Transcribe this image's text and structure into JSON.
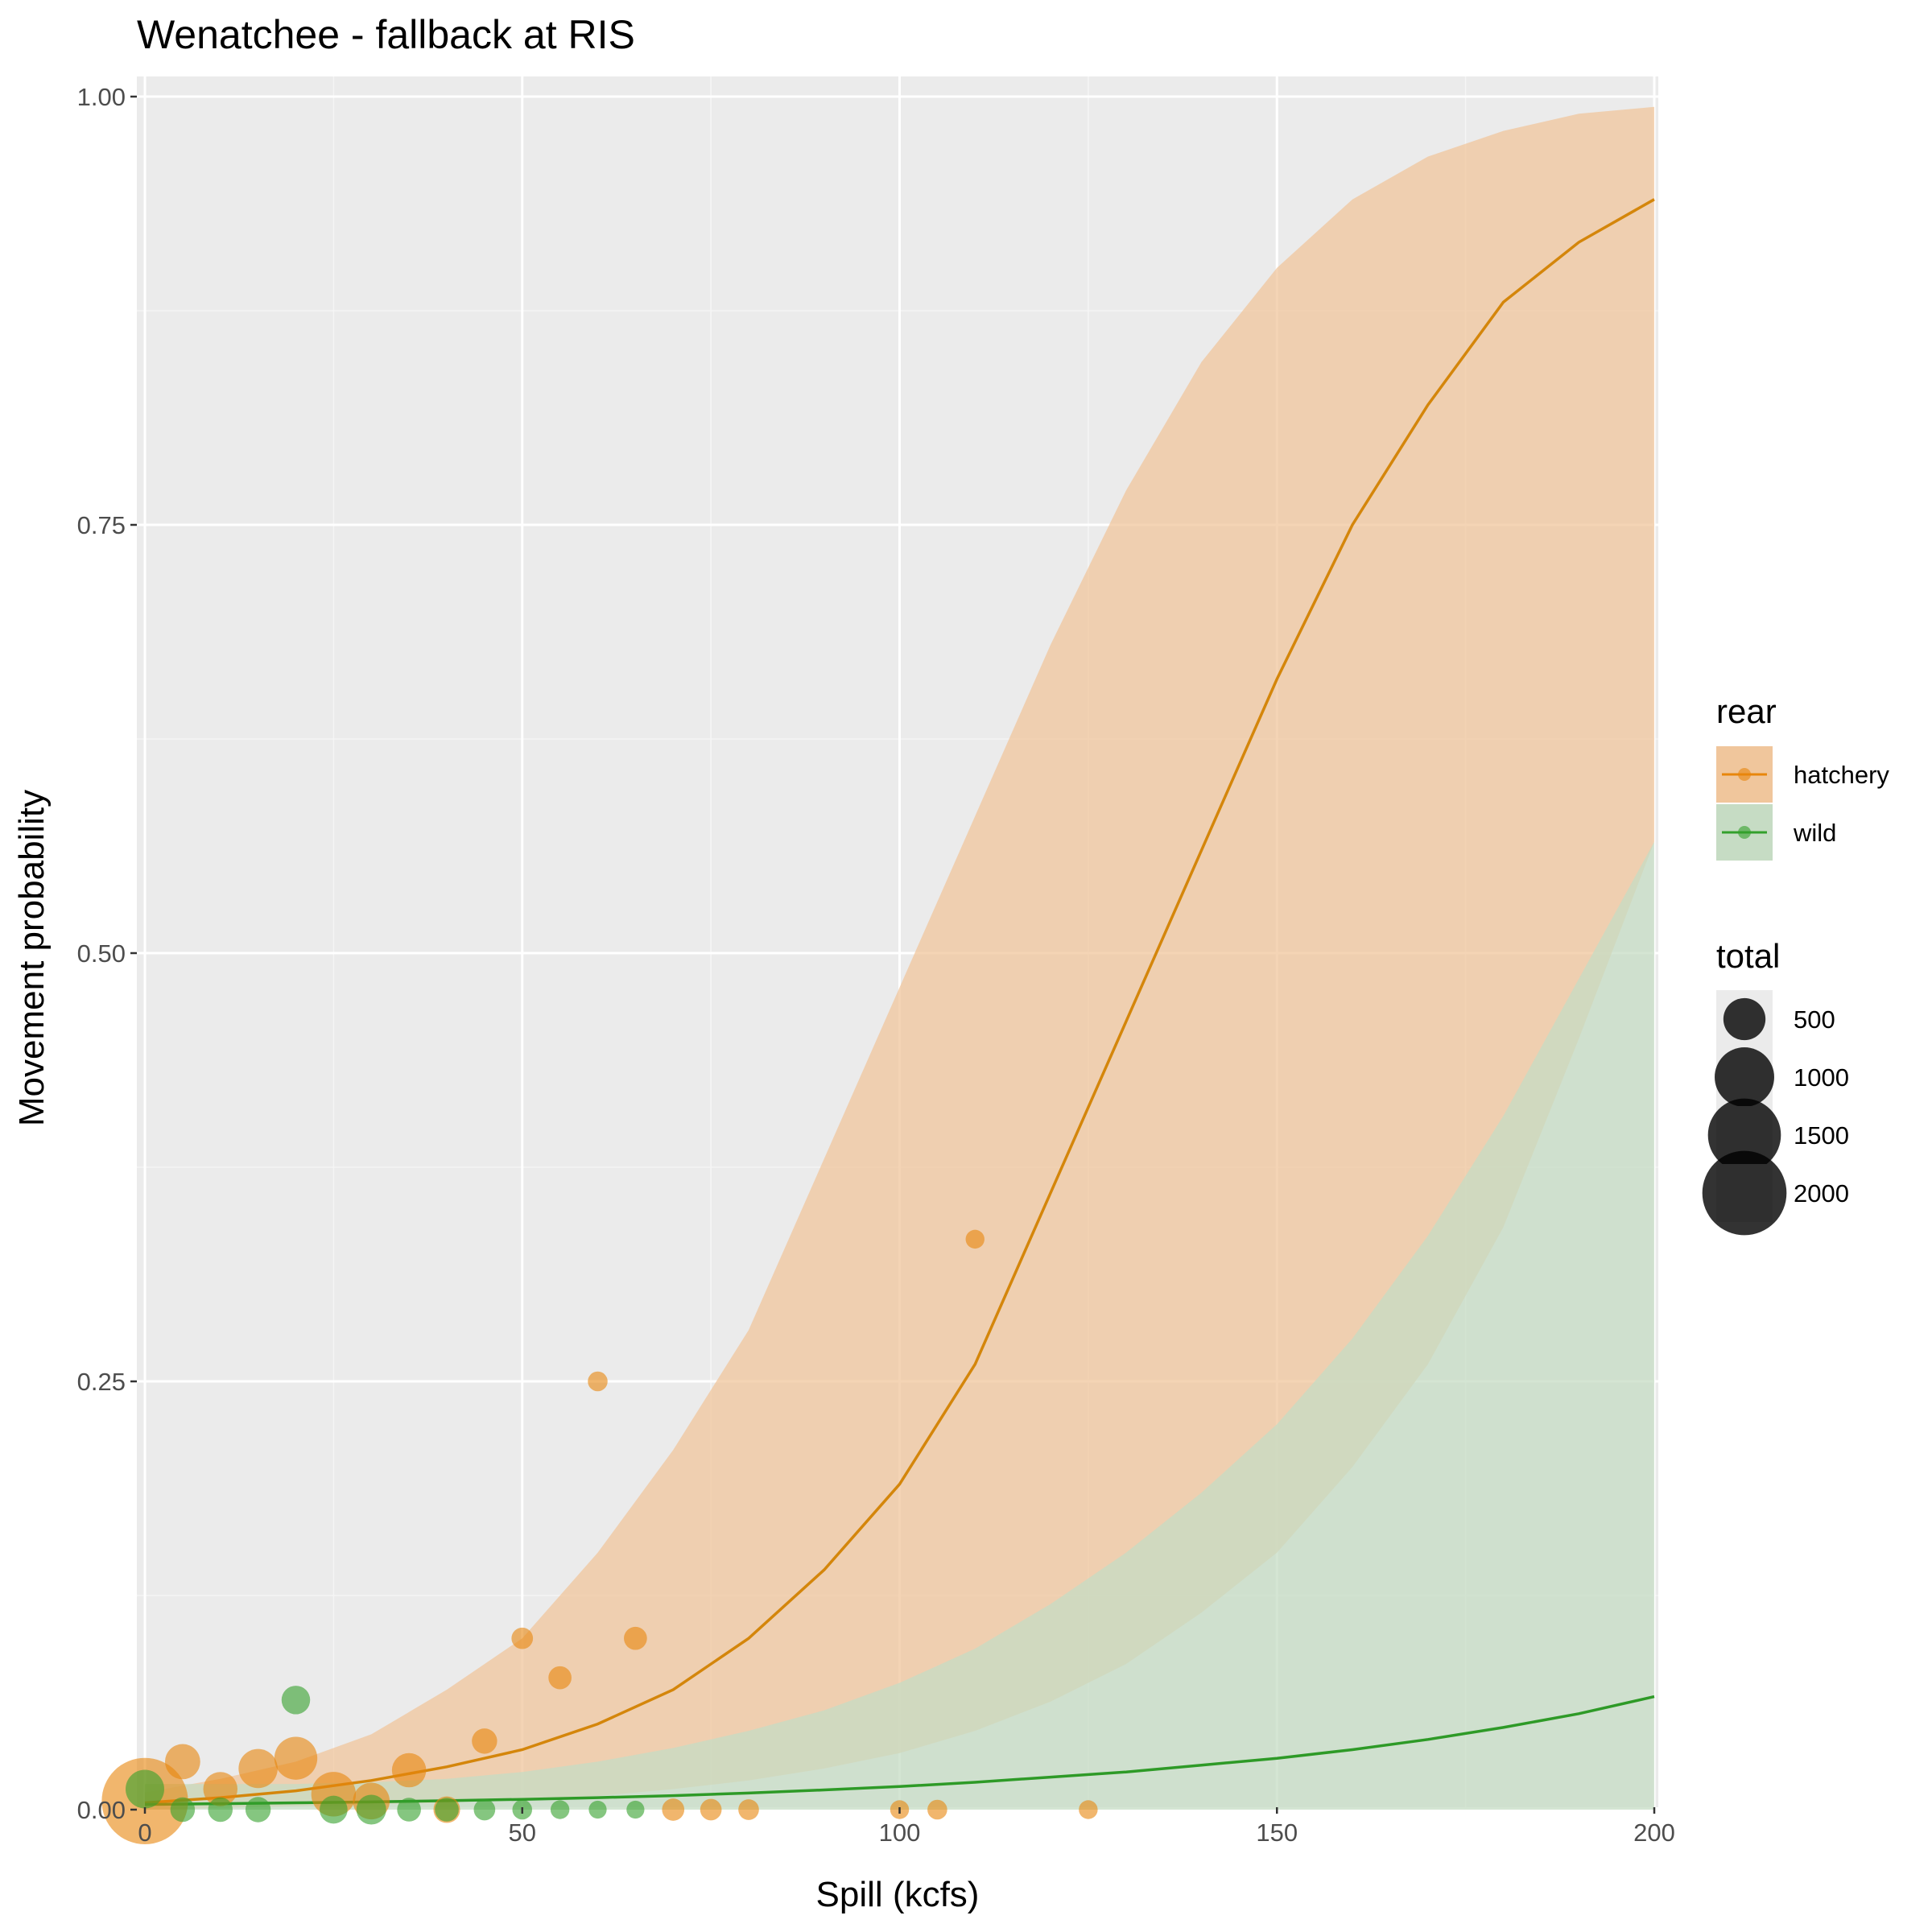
{
  "chart_data": {
    "type": "line",
    "title": "Wenatchee - fallback at RIS",
    "xlabel": "Spill (kcfs)",
    "ylabel": "Movement probability",
    "xlim": [
      0,
      200
    ],
    "ylim": [
      0,
      1
    ],
    "x_ticks": [
      0,
      50,
      100,
      150,
      200
    ],
    "x_tick_labels": [
      "0",
      "50",
      "100",
      "150",
      "200"
    ],
    "y_ticks": [
      0,
      0.25,
      0.5,
      0.75,
      1
    ],
    "y_tick_labels": [
      "0.00",
      "0.25",
      "0.50",
      "0.75",
      "1.00"
    ],
    "grid": true,
    "legend_placement": "right",
    "legend": {
      "color_title": "rear",
      "size_title": "total",
      "size_entries": [
        {
          "label": "500",
          "value": 500
        },
        {
          "label": "1000",
          "value": 1000
        },
        {
          "label": "1500",
          "value": 1500
        },
        {
          "label": "2000",
          "value": 2000
        }
      ]
    },
    "series": [
      {
        "name": "hatchery",
        "color": "#e8860b",
        "band_color": "#f0c69c",
        "line_color": "#d4860b",
        "x": [
          0,
          10,
          20,
          30,
          40,
          50,
          60,
          70,
          80,
          90,
          100,
          110,
          120,
          130,
          140,
          150,
          160,
          170,
          180,
          190,
          200
        ],
        "y": [
          0.004,
          0.007,
          0.011,
          0.017,
          0.025,
          0.035,
          0.05,
          0.07,
          0.1,
          0.14,
          0.19,
          0.26,
          0.36,
          0.46,
          0.56,
          0.66,
          0.75,
          0.82,
          0.88,
          0.915,
          0.94
        ],
        "lower": [
          0.0,
          0.001,
          0.002,
          0.003,
          0.004,
          0.006,
          0.008,
          0.012,
          0.017,
          0.024,
          0.033,
          0.046,
          0.063,
          0.085,
          0.115,
          0.15,
          0.2,
          0.26,
          0.34,
          0.45,
          0.565
        ],
        "upper": [
          0.01,
          0.018,
          0.028,
          0.044,
          0.07,
          0.1,
          0.15,
          0.21,
          0.28,
          0.38,
          0.48,
          0.58,
          0.68,
          0.77,
          0.845,
          0.9,
          0.94,
          0.965,
          0.98,
          0.99,
          0.994
        ],
        "points": [
          {
            "x": 0,
            "y": 0.005,
            "total": 2100
          },
          {
            "x": 5,
            "y": 0.028,
            "total": 350
          },
          {
            "x": 10,
            "y": 0.012,
            "total": 330
          },
          {
            "x": 15,
            "y": 0.024,
            "total": 430
          },
          {
            "x": 20,
            "y": 0.03,
            "total": 520
          },
          {
            "x": 25,
            "y": 0.009,
            "total": 560
          },
          {
            "x": 30,
            "y": 0.005,
            "total": 380
          },
          {
            "x": 35,
            "y": 0.023,
            "total": 330
          },
          {
            "x": 40,
            "y": 0.0,
            "total": 200
          },
          {
            "x": 45,
            "y": 0.04,
            "total": 180
          },
          {
            "x": 50,
            "y": 0.1,
            "total": 130
          },
          {
            "x": 55,
            "y": 0.077,
            "total": 150
          },
          {
            "x": 60,
            "y": 0.25,
            "total": 110
          },
          {
            "x": 65,
            "y": 0.1,
            "total": 150
          },
          {
            "x": 70,
            "y": 0.0,
            "total": 140
          },
          {
            "x": 75,
            "y": 0.0,
            "total": 130
          },
          {
            "x": 80,
            "y": 0.0,
            "total": 120
          },
          {
            "x": 100,
            "y": 0.0,
            "total": 100
          },
          {
            "x": 105,
            "y": 0.0,
            "total": 110
          },
          {
            "x": 110,
            "y": 0.333,
            "total": 100
          },
          {
            "x": 125,
            "y": 0.0,
            "total": 100
          }
        ]
      },
      {
        "name": "wild",
        "color": "#33a02c",
        "band_color": "#c6dcc4",
        "line_color": "#2e9a27",
        "x": [
          0,
          10,
          20,
          30,
          40,
          50,
          60,
          70,
          80,
          90,
          100,
          110,
          120,
          130,
          140,
          150,
          160,
          170,
          180,
          190,
          200
        ],
        "y": [
          0.003,
          0.0035,
          0.004,
          0.0045,
          0.0052,
          0.006,
          0.007,
          0.0082,
          0.0097,
          0.0115,
          0.0135,
          0.016,
          0.019,
          0.022,
          0.026,
          0.03,
          0.035,
          0.041,
          0.048,
          0.056,
          0.066
        ],
        "lower": [
          0,
          0,
          0,
          0,
          0,
          0,
          0,
          0,
          0,
          0,
          0,
          0,
          0,
          0,
          0,
          0,
          0,
          0,
          0,
          0,
          0
        ],
        "upper": [
          0.015,
          0.015,
          0.015,
          0.016,
          0.018,
          0.022,
          0.028,
          0.036,
          0.046,
          0.058,
          0.074,
          0.094,
          0.12,
          0.15,
          0.185,
          0.225,
          0.275,
          0.335,
          0.405,
          0.485,
          0.565
        ],
        "points": [
          {
            "x": 0,
            "y": 0.012,
            "total": 420
          },
          {
            "x": 5,
            "y": 0.0,
            "total": 170
          },
          {
            "x": 10,
            "y": 0.0,
            "total": 170
          },
          {
            "x": 15,
            "y": 0.0,
            "total": 180
          },
          {
            "x": 20,
            "y": 0.064,
            "total": 230
          },
          {
            "x": 25,
            "y": 0.0,
            "total": 220
          },
          {
            "x": 30,
            "y": 0.0,
            "total": 250
          },
          {
            "x": 35,
            "y": 0.0,
            "total": 160
          },
          {
            "x": 40,
            "y": 0.0,
            "total": 160
          },
          {
            "x": 45,
            "y": 0.0,
            "total": 130
          },
          {
            "x": 50,
            "y": 0.0,
            "total": 110
          },
          {
            "x": 55,
            "y": 0.0,
            "total": 100
          },
          {
            "x": 60,
            "y": 0.0,
            "total": 90
          },
          {
            "x": 65,
            "y": 0.0,
            "total": 90
          }
        ]
      }
    ]
  }
}
